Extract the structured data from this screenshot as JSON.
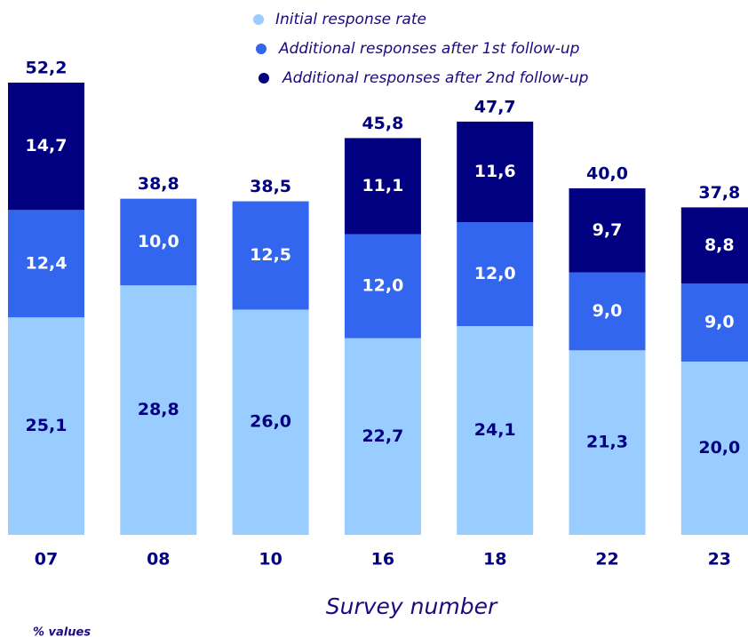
{
  "chart_data": {
    "type": "stacked-bar",
    "categories": [
      "07",
      "08",
      "10",
      "16",
      "18",
      "22",
      "23"
    ],
    "series": [
      {
        "name": "Initial response rate",
        "color": "#99ccff",
        "label_color": "#000080",
        "values": [
          25.1,
          28.8,
          26.0,
          22.7,
          24.1,
          21.3,
          20.0
        ],
        "value_labels": [
          "25,1",
          "28,8",
          "26,0",
          "22,7",
          "24,1",
          "21,3",
          "20,0"
        ]
      },
      {
        "name": "Additional responses after 1st follow-up",
        "color": "#3366ee",
        "label_color": "#ffffff",
        "values": [
          12.4,
          10.0,
          12.5,
          12.0,
          12.0,
          9.0,
          9.0
        ],
        "value_labels": [
          "12,4",
          "10,0",
          "12,5",
          "12,0",
          "12,0",
          "9,0",
          "9,0"
        ]
      },
      {
        "name": "Additional responses after 2nd follow-up",
        "color": "#000080",
        "label_color": "#ffffff",
        "values": [
          14.7,
          null,
          null,
          11.1,
          11.6,
          9.7,
          8.8
        ],
        "value_labels": [
          "14,7",
          null,
          null,
          "11,1",
          "11,6",
          "9,7",
          "8,8"
        ]
      }
    ],
    "totals": [
      52.2,
      38.8,
      38.5,
      45.8,
      47.7,
      40.0,
      37.8
    ],
    "total_labels": [
      "52,2",
      "38,8",
      "38,5",
      "45,8",
      "47,7",
      "40,0",
      "37,8"
    ],
    "x_label": "Survey number",
    "note": "% values"
  }
}
